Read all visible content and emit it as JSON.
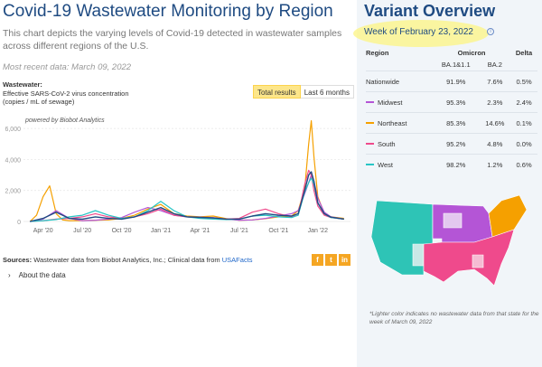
{
  "left": {
    "title": "Covid-19 Wastewater Monitoring by Region",
    "description": "This chart depicts the varying levels of Covid-19 detected in wastewater samples across different regions of the U.S.",
    "recent": "Most recent data: March 09, 2022",
    "wastewater_label": "Wastewater:",
    "wastewater_sub1": "Effective SARS-CoV-2 virus concentration",
    "wastewater_sub2": "(copies / mL of sewage)",
    "toggle_active": "Total results",
    "toggle_inactive": "Last 6 months",
    "powered": "powered by Biobot Analytics",
    "sources_label": "Sources:",
    "sources_text": " Wastewater data from Biobot Analytics, Inc.; Clinical data from ",
    "sources_link": "USAFacts",
    "about": "About the data",
    "about_chevron": "›"
  },
  "chart_data": {
    "type": "line",
    "ylim": [
      0,
      7000
    ],
    "y_ticks": [
      "6,000",
      "4,000",
      "2,000",
      "0"
    ],
    "y_tick_values": [
      6000,
      4000,
      2000,
      0
    ],
    "x_ticks": [
      "Apr '20",
      "Jul '20",
      "Oct '20",
      "Jan '21",
      "Apr '21",
      "Jul '21",
      "Oct '21",
      "Jan '22"
    ],
    "x_tick_months": [
      3,
      6,
      9,
      12,
      15,
      18,
      21,
      24
    ],
    "x_unit": "months since Jan 2020",
    "series": [
      {
        "name": "Northeast",
        "color": "#f5a000",
        "months": [
          2.0,
          2.5,
          3.0,
          3.5,
          4.0,
          4.5,
          5.0,
          6.0,
          7.0,
          8.0,
          9.0,
          10.0,
          11.0,
          12.0,
          13.0,
          14.0,
          15.0,
          16.0,
          17.0,
          18.0,
          19.0,
          20.0,
          21.0,
          22.0,
          22.5,
          23.0,
          23.3,
          23.5,
          23.7,
          24.0,
          24.5,
          25.0,
          26.0
        ],
        "values": [
          0,
          400,
          1600,
          2300,
          500,
          100,
          50,
          60,
          80,
          100,
          200,
          400,
          800,
          1100,
          500,
          350,
          300,
          350,
          180,
          80,
          100,
          180,
          300,
          350,
          700,
          2100,
          5000,
          6500,
          4200,
          1600,
          500,
          300,
          200
        ]
      },
      {
        "name": "Midwest",
        "color": "#b455d6",
        "months": [
          2.0,
          3.0,
          4.0,
          5.0,
          6.0,
          7.0,
          8.0,
          9.0,
          10.0,
          11.0,
          12.0,
          13.0,
          14.0,
          15.0,
          16.0,
          17.0,
          18.0,
          19.0,
          20.0,
          21.0,
          22.0,
          22.5,
          23.0,
          23.3,
          23.5,
          23.7,
          24.0,
          24.5,
          25.0,
          26.0
        ],
        "values": [
          0,
          150,
          700,
          200,
          50,
          80,
          150,
          250,
          600,
          900,
          700,
          400,
          300,
          280,
          250,
          150,
          80,
          100,
          200,
          350,
          500,
          700,
          1800,
          2500,
          3000,
          2600,
          1500,
          600,
          300,
          150
        ]
      },
      {
        "name": "South",
        "color": "#ef4a8c",
        "months": [
          2.0,
          3.0,
          4.0,
          5.0,
          6.0,
          7.0,
          8.0,
          9.0,
          10.0,
          11.0,
          12.0,
          13.0,
          14.0,
          15.0,
          16.0,
          17.0,
          18.0,
          19.0,
          20.0,
          21.0,
          22.0,
          22.5,
          23.0,
          23.3,
          23.5,
          23.7,
          24.0,
          24.5,
          25.0,
          26.0
        ],
        "values": [
          0,
          50,
          150,
          200,
          300,
          500,
          300,
          200,
          300,
          500,
          800,
          400,
          300,
          250,
          200,
          150,
          200,
          600,
          800,
          500,
          300,
          400,
          2400,
          3300,
          3000,
          2000,
          1000,
          400,
          250,
          150
        ]
      },
      {
        "name": "West",
        "color": "#28c5c5",
        "months": [
          2.0,
          3.0,
          4.0,
          5.0,
          6.0,
          7.0,
          8.0,
          9.0,
          10.0,
          11.0,
          12.0,
          13.0,
          14.0,
          15.0,
          16.0,
          17.0,
          18.0,
          19.0,
          20.0,
          21.0,
          22.0,
          22.5,
          23.0,
          23.3,
          23.5,
          23.7,
          24.0,
          24.5,
          25.0,
          26.0
        ],
        "values": [
          0,
          50,
          120,
          300,
          400,
          700,
          400,
          200,
          300,
          700,
          1300,
          700,
          300,
          200,
          150,
          120,
          150,
          350,
          400,
          300,
          250,
          400,
          1900,
          2500,
          2800,
          2400,
          1200,
          500,
          250,
          150
        ]
      },
      {
        "name": "Nationwide",
        "color": "#1f4b82",
        "months": [
          2.0,
          3.0,
          4.0,
          5.0,
          6.0,
          7.0,
          8.0,
          9.0,
          10.0,
          11.0,
          12.0,
          13.0,
          14.0,
          15.0,
          16.0,
          17.0,
          18.0,
          19.0,
          20.0,
          21.0,
          22.0,
          22.5,
          23.0,
          23.3,
          23.5,
          23.7,
          24.0,
          24.5,
          25.0,
          26.0
        ],
        "values": [
          0,
          200,
          600,
          200,
          150,
          300,
          200,
          150,
          300,
          600,
          900,
          500,
          300,
          260,
          230,
          150,
          150,
          350,
          500,
          400,
          350,
          500,
          2000,
          3000,
          3200,
          2600,
          1200,
          500,
          280,
          150
        ]
      }
    ]
  },
  "variant": {
    "title": "Variant Overview",
    "week": "Week of February 23, 2022",
    "info": "i",
    "col_region": "Region",
    "col_omicron": "Omicron",
    "col_delta": "Delta",
    "col_ba11": "BA.1&1.1",
    "col_ba2": "BA.2",
    "rows": [
      {
        "region": "Nationwide",
        "ba11": "91.9%",
        "ba2": "7.6%",
        "delta": "0.5%",
        "color": ""
      },
      {
        "region": "Midwest",
        "ba11": "95.3%",
        "ba2": "2.3%",
        "delta": "2.4%",
        "color": "#b455d6"
      },
      {
        "region": "Northeast",
        "ba11": "85.3%",
        "ba2": "14.6%",
        "delta": "0.1%",
        "color": "#f5a000"
      },
      {
        "region": "South",
        "ba11": "95.2%",
        "ba2": "4.8%",
        "delta": "0.0%",
        "color": "#ef4a8c"
      },
      {
        "region": "West",
        "ba11": "98.2%",
        "ba2": "1.2%",
        "delta": "0.6%",
        "color": "#28c5c5"
      }
    ],
    "note": "*Lighter color indicates no wastewater data from that state for the week of March 09, 2022"
  },
  "share": {
    "facebook": "f",
    "twitter": "t",
    "linkedin": "in"
  },
  "map_colors": {
    "west": "#2ec4b6",
    "midwest": "#b455d6",
    "south": "#ef4a8c",
    "northeast": "#f5a000"
  }
}
